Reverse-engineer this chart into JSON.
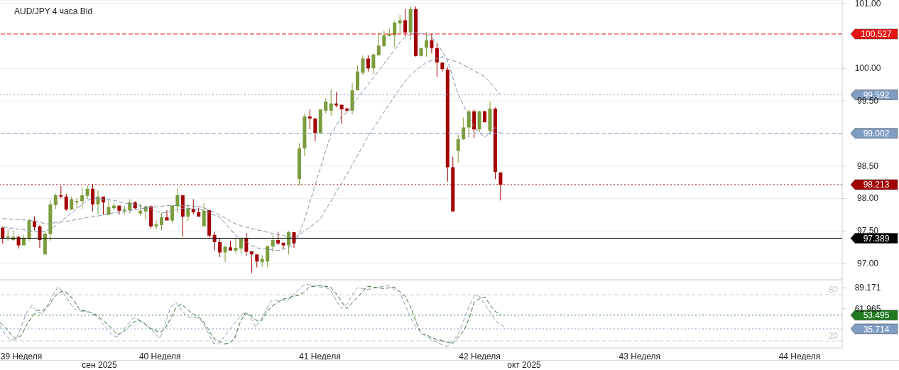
{
  "chart_data": [
    {
      "type": "candlestick",
      "title": "AUD/JPY  4 часа Bid",
      "categories": [
        null,
        null,
        null,
        null,
        null,
        null,
        null,
        null,
        null,
        null,
        null,
        null,
        null,
        null,
        null,
        null,
        null,
        null,
        null,
        null,
        null,
        null,
        null,
        null,
        null,
        null,
        null,
        null,
        null,
        null,
        null,
        null,
        null,
        null,
        null,
        null,
        null,
        null,
        null,
        null,
        null,
        null,
        null,
        null,
        null,
        null,
        null,
        null,
        null,
        null,
        null,
        null,
        null,
        null,
        null,
        null,
        null,
        null,
        null,
        null,
        null,
        null,
        null,
        null,
        null,
        null,
        null,
        null,
        null,
        null,
        null,
        null,
        null,
        null,
        null,
        null,
        null,
        null,
        null,
        null,
        null,
        null,
        null,
        null,
        null,
        null,
        null,
        null,
        null,
        null,
        null,
        null,
        null,
        null,
        null,
        null,
        null,
        null,
        null,
        null,
        null,
        null,
        null,
        null,
        null,
        null,
        null,
        null,
        null,
        null,
        null,
        null,
        null,
        null,
        null,
        null,
        null,
        null,
        null,
        null,
        null,
        null,
        null,
        null,
        null,
        null,
        null,
        null,
        null,
        null,
        null,
        null,
        null,
        null,
        null,
        null,
        null,
        null,
        null,
        null,
        null,
        null,
        null,
        null,
        null,
        null,
        null,
        null,
        null,
        null,
        null,
        null,
        null,
        null,
        null,
        null,
        null,
        null,
        null
      ],
      "tick_labels": "y",
      "ylim": [
        96.75,
        101.05
      ],
      "yticks": [
        {
          "value": 97,
          "label": "97.00"
        },
        {
          "value": 97.5,
          "label": "97.50"
        },
        {
          "value": 98,
          "label": "98.00"
        },
        {
          "value": 98.5,
          "label": "98.50"
        },
        {
          "value": 99.5,
          "label": "99.50"
        },
        {
          "value": 100,
          "label": "100.00"
        },
        {
          "value": 101,
          "label": "101.00"
        }
      ],
      "grid": "y",
      "series": [
        {
          "ohlc": [
            [
              97.55,
              97.57,
              97.31,
              97.39
            ],
            [
              97.4,
              97.53,
              97.35,
              97.42
            ],
            [
              97.36,
              97.51,
              97.35,
              97.41
            ],
            [
              97.41,
              97.42,
              97.23,
              97.28
            ],
            [
              97.28,
              97.44,
              97.28,
              97.39
            ],
            [
              97.38,
              97.69,
              97.35,
              97.66
            ],
            [
              97.65,
              97.72,
              97.51,
              97.56
            ],
            [
              97.57,
              97.59,
              97.24,
              97.36
            ],
            [
              97.14,
              97.5,
              97.14,
              97.46
            ],
            [
              97.45,
              97.97,
              97.35,
              97.91
            ],
            [
              97.9,
              98.08,
              97.84,
              98.05
            ],
            [
              98.05,
              98.19,
              98,
              98.03
            ],
            [
              98.03,
              98.07,
              97.81,
              97.83
            ],
            [
              97.83,
              98.03,
              97.82,
              97.99
            ],
            [
              97.94,
              98.01,
              97.85,
              97.96
            ],
            [
              97.96,
              98.16,
              97.84,
              98.05
            ],
            [
              98.04,
              98.2,
              97.99,
              98.15
            ],
            [
              98.15,
              98.22,
              97.8,
              97.91
            ],
            [
              97.91,
              98.13,
              97.75,
              98.03
            ],
            [
              98.03,
              98.03,
              97.75,
              97.94
            ],
            [
              97.75,
              97.97,
              97.74,
              97.87
            ],
            [
              97.85,
              97.93,
              97.82,
              97.89
            ],
            [
              97.89,
              97.89,
              97.75,
              97.81
            ],
            [
              97.81,
              97.88,
              97.75,
              97.83
            ],
            [
              97.82,
              97.99,
              97.77,
              97.94
            ],
            [
              97.94,
              97.96,
              97.83,
              97.85
            ],
            [
              97.77,
              97.92,
              97.73,
              97.81
            ],
            [
              97.8,
              97.89,
              97.66,
              97.88
            ],
            [
              97.88,
              97.89,
              97.54,
              97.57
            ],
            [
              97.57,
              97.66,
              97.53,
              97.6
            ],
            [
              97.59,
              97.78,
              97.51,
              97.71
            ],
            [
              97.71,
              97.82,
              97.66,
              97.66
            ],
            [
              97.66,
              97.89,
              97.62,
              97.89
            ],
            [
              97.88,
              98.15,
              97.78,
              98.05
            ],
            [
              98.05,
              98.05,
              97.41,
              97.72
            ],
            [
              97.72,
              97.91,
              97.65,
              97.85
            ],
            [
              97.84,
              97.99,
              97.76,
              97.79
            ],
            [
              97.79,
              97.86,
              97.72,
              97.72
            ],
            [
              97.57,
              97.93,
              97.57,
              97.81
            ],
            [
              97.82,
              97.82,
              97.4,
              97.43
            ],
            [
              97.44,
              97.49,
              97.2,
              97.33
            ],
            [
              97.33,
              97.39,
              97.1,
              97.17
            ],
            [
              97.17,
              97.27,
              97.02,
              97.26
            ],
            [
              97.25,
              97.35,
              97.2,
              97.2
            ],
            [
              97.2,
              97.39,
              97.15,
              97.24
            ],
            [
              97.23,
              97.4,
              97.15,
              97.39
            ],
            [
              97.39,
              97.47,
              97.12,
              97.18
            ],
            [
              97.19,
              97.19,
              96.85,
              97.14
            ],
            [
              97.14,
              97.14,
              96.94,
              97.03
            ],
            [
              97.02,
              97.13,
              96.95,
              97.07
            ],
            [
              97.03,
              97.27,
              96.95,
              97.27
            ],
            [
              97.26,
              97.44,
              97.18,
              97.36
            ],
            [
              97.36,
              97.48,
              97.28,
              97.31
            ],
            [
              97.32,
              97.32,
              97.22,
              97.28
            ],
            [
              97.28,
              97.5,
              97.14,
              97.48
            ],
            [
              97.48,
              97.48,
              97.24,
              97.31
            ],
            [
              98.3,
              98.85,
              98.2,
              98.77
            ],
            [
              98.77,
              99.31,
              98.65,
              99.26
            ],
            [
              99.26,
              99.37,
              99.06,
              99.23
            ],
            [
              99.23,
              99.23,
              98.88,
              99
            ],
            [
              99,
              99.37,
              98.99,
              99.37
            ],
            [
              99.35,
              99.54,
              99.31,
              99.49
            ],
            [
              99.35,
              99.68,
              99.27,
              99.46
            ],
            [
              99.46,
              99.64,
              99.4,
              99.43
            ],
            [
              99.44,
              99.44,
              99.15,
              99.37
            ],
            [
              99.38,
              99.4,
              99.33,
              99.35
            ],
            [
              99.35,
              99.77,
              99.29,
              99.66
            ],
            [
              99.66,
              100.04,
              99.66,
              99.95
            ],
            [
              99.93,
              100.2,
              99.89,
              100.15
            ],
            [
              100.15,
              100.2,
              99.95,
              100
            ],
            [
              100,
              100.24,
              99.91,
              100.21
            ],
            [
              100.2,
              100.55,
              100.2,
              100.35
            ],
            [
              100.34,
              100.58,
              100.33,
              100.51
            ],
            [
              100.5,
              100.61,
              100.49,
              100.53
            ],
            [
              100.51,
              100.73,
              100.33,
              100.7
            ],
            [
              100.69,
              100.82,
              100.53,
              100.74
            ],
            [
              100.74,
              100.91,
              100.49,
              100.55
            ],
            [
              100.55,
              100.95,
              100.44,
              100.91
            ],
            [
              100.91,
              100.95,
              100.18,
              100.19
            ],
            [
              100.19,
              100.32,
              100.18,
              100.31
            ],
            [
              100.32,
              100.55,
              100.18,
              100.43
            ],
            [
              100.43,
              100.53,
              100.23,
              100.31
            ],
            [
              100.31,
              100.38,
              99.87,
              100.09
            ],
            [
              100.09,
              100.09,
              99.95,
              99.99
            ],
            [
              99.98,
              100.02,
              98.26,
              98.48
            ],
            [
              98.48,
              98.64,
              97.8,
              97.8
            ],
            [
              98.73,
              98.98,
              98.55,
              98.91
            ],
            [
              98.91,
              99.24,
              98.9,
              99.09
            ],
            [
              99.09,
              99.37,
              98.93,
              99.34
            ],
            [
              99.34,
              99.37,
              98.93,
              99.06
            ],
            [
              99.06,
              99.35,
              99.02,
              99.34
            ],
            [
              99.34,
              99.35,
              99.17,
              99.17
            ],
            [
              99.04,
              99.49,
              98.98,
              99.38
            ],
            [
              99.38,
              99.4,
              98.3,
              98.41
            ],
            [
              98.4,
              98.4,
              97.97,
              98.21
            ],
            null,
            null,
            null,
            null,
            null,
            null,
            null,
            null,
            null,
            null,
            null,
            null,
            null,
            null,
            null,
            null,
            null,
            null,
            null,
            null,
            null,
            null,
            null,
            null,
            null,
            null,
            null,
            null,
            null,
            null,
            null,
            null,
            null,
            null,
            null,
            null,
            null,
            null,
            null,
            null,
            null,
            null,
            null,
            null,
            null,
            null,
            null,
            null,
            null,
            null,
            null,
            null,
            null,
            null,
            null,
            null,
            null,
            null,
            null,
            null,
            null,
            null,
            null,
            null
          ],
          "colors": [
            "#a30000",
            "#7b9c3c",
            "#7b9c3c",
            "#a30000",
            "#7b9c3c",
            "#7b9c3c",
            "#a30000",
            "#a30000",
            "#7b9c3c",
            "#7b9c3c",
            "#7b9c3c",
            "#a30000",
            "#a30000",
            "#7b9c3c",
            "#7b9c3c",
            "#7b9c3c",
            "#7b9c3c",
            "#a30000",
            "#7b9c3c",
            "#a30000",
            "#7b9c3c",
            "#7b9c3c",
            "#a30000",
            "#7b9c3c",
            "#7b9c3c",
            "#a30000",
            "#7b9c3c",
            "#7b9c3c",
            "#a30000",
            "#7b9c3c",
            "#7b9c3c",
            "#a30000",
            "#7b9c3c",
            "#7b9c3c",
            "#a30000",
            "#7b9c3c",
            "#a30000",
            "#a30000",
            "#7b9c3c",
            "#a30000",
            "#a30000",
            "#a30000",
            "#7b9c3c",
            "#a30000",
            "#7b9c3c",
            "#7b9c3c",
            "#a30000",
            "#a30000",
            "#a30000",
            "#7b9c3c",
            "#7b9c3c",
            "#7b9c3c",
            "#a30000",
            "#a30000",
            "#7b9c3c",
            "#a30000",
            "#7b9c3c",
            "#7b9c3c",
            "#a30000",
            "#a30000",
            "#7b9c3c",
            "#7b9c3c",
            "#7b9c3c",
            "#a30000",
            "#a30000",
            "#a30000",
            "#7b9c3c",
            "#7b9c3c",
            "#7b9c3c",
            "#a30000",
            "#7b9c3c",
            "#7b9c3c",
            "#7b9c3c",
            "#7b9c3c",
            "#7b9c3c",
            "#7b9c3c",
            "#a30000",
            "#7b9c3c",
            "#a30000",
            "#7b9c3c",
            "#7b9c3c",
            "#a30000",
            "#a30000",
            "#a30000",
            "#a30000",
            "#a30000",
            "#7b9c3c",
            "#7b9c3c",
            "#7b9c3c",
            "#a30000",
            "#7b9c3c",
            "#a30000",
            "#7b9c3c",
            "#a30000",
            "#a30000",
            null,
            null,
            null,
            null,
            null,
            null,
            null,
            null,
            null,
            null,
            null,
            null,
            null,
            null,
            null,
            null,
            null,
            null,
            null,
            null,
            null,
            null,
            null,
            null,
            null,
            null,
            null,
            null,
            null,
            null,
            null,
            null,
            null,
            null,
            null,
            null,
            null,
            null,
            null,
            null,
            null,
            null,
            null,
            null,
            null,
            null,
            null,
            null,
            null,
            null,
            null,
            null,
            null,
            null,
            null,
            null,
            null,
            null,
            null,
            null,
            null,
            null,
            null,
            null
          ]
        },
        {
          "type": "line",
          "color": "#7d90a8",
          "line_style": "dashed",
          "values": [
            97.69,
            97.69,
            97.68,
            97.68,
            97.67,
            97.66,
            97.66,
            97.64,
            97.61,
            97.61,
            97.63,
            97.64,
            97.65,
            97.66,
            97.68,
            97.69,
            97.71,
            97.72,
            97.73,
            97.75,
            97.76,
            97.78,
            97.79,
            97.8,
            97.81,
            97.83,
            97.84,
            97.85,
            97.86,
            97.87,
            97.88,
            97.89,
            97.89,
            97.89,
            97.89,
            97.89,
            97.88,
            97.88,
            97.86,
            97.82,
            97.79,
            97.74,
            97.7,
            97.65,
            97.61,
            97.58,
            97.56,
            97.54,
            97.52,
            97.5,
            97.48,
            97.46,
            97.44,
            97.43,
            97.41,
            97.4,
            97.44,
            97.5,
            97.56,
            97.62,
            97.69,
            97.83,
            97.96,
            98.1,
            98.24,
            98.37,
            98.52,
            98.66,
            98.81,
            98.96,
            99.08,
            99.2,
            99.33,
            99.45,
            99.57,
            99.69,
            99.8,
            99.9,
            99.97,
            100.03,
            100.09,
            100.12,
            100.15,
            100.18,
            100.14,
            100.12,
            100.09,
            100.05,
            100.01,
            99.96,
            99.92,
            99.87,
            99.79,
            99.69,
            99.59,
            null,
            null,
            null,
            null,
            null,
            null,
            null,
            null,
            null,
            null,
            null,
            null,
            null,
            null,
            null,
            null,
            null,
            null,
            null,
            null,
            null,
            null,
            null,
            null,
            null,
            null,
            null,
            null,
            null,
            null,
            null,
            null,
            null,
            null,
            null,
            null,
            null,
            null,
            null,
            null,
            null,
            null,
            null,
            null,
            null,
            null,
            null,
            null,
            null,
            null,
            null,
            null,
            null,
            null,
            null,
            null,
            null,
            null,
            null,
            null,
            null,
            null,
            null,
            null
          ]
        },
        {
          "type": "line",
          "color": "#7d90a8",
          "line_style": "dashed",
          "values": [
            97.56,
            97.55,
            97.54,
            97.53,
            97.52,
            97.5,
            97.49,
            97.48,
            97.5,
            97.53,
            97.58,
            97.65,
            97.71,
            97.78,
            97.84,
            97.91,
            97.97,
            98,
            98,
            97.99,
            97.99,
            97.97,
            97.95,
            97.93,
            97.92,
            97.91,
            97.89,
            97.86,
            97.83,
            97.8,
            97.78,
            97.78,
            97.81,
            97.83,
            97.85,
            97.85,
            97.84,
            97.83,
            97.82,
            97.78,
            97.74,
            97.71,
            97.62,
            97.53,
            97.43,
            97.38,
            97.33,
            97.28,
            97.24,
            97.23,
            97.22,
            97.21,
            97.2,
            97.22,
            97.25,
            97.28,
            97.46,
            97.68,
            97.94,
            98.21,
            98.47,
            98.73,
            98.99,
            99.12,
            99.27,
            99.32,
            99.42,
            99.54,
            99.65,
            99.75,
            99.86,
            99.96,
            100.07,
            100.18,
            100.28,
            100.4,
            100.48,
            100.53,
            100.55,
            100.54,
            100.52,
            100.48,
            100.38,
            100.26,
            100.12,
            99.85,
            99.61,
            99.43,
            99.27,
            99.1,
            99.01,
            98.94,
            99.01,
            99.09,
            99,
            null,
            null,
            null,
            null,
            null,
            null,
            null,
            null,
            null,
            null,
            null,
            null,
            null,
            null,
            null,
            null,
            null,
            null,
            null,
            null,
            null,
            null,
            null,
            null,
            null,
            null,
            null,
            null,
            null,
            null,
            null,
            null,
            null,
            null,
            null,
            null,
            null,
            null,
            null,
            null,
            null,
            null,
            null,
            null,
            null,
            null,
            null,
            null,
            null,
            null,
            null,
            null,
            null,
            null,
            null,
            null,
            null,
            null,
            null,
            null,
            null,
            null,
            null,
            null
          ]
        }
      ],
      "ref_lines": [
        {
          "axis": "y",
          "value": 100.527,
          "label": "100.527",
          "color": "#e81414",
          "line_style": "dashed"
        },
        {
          "axis": "y",
          "value": 99.592,
          "label": "99.592",
          "color": "#7f9cc2",
          "line_style": "dotted"
        },
        {
          "axis": "y",
          "value": 99.002,
          "label": "99.002",
          "color": "#7f9cc2",
          "line_style": "dashed"
        },
        {
          "axis": "y",
          "value": 98.213,
          "label": "98.213",
          "color": "#a30000",
          "line_style": "dotted"
        },
        {
          "axis": "y",
          "value": 97.389,
          "label": "97.389",
          "color": "#000000",
          "line_style": "solid"
        }
      ]
    },
    {
      "type": "line",
      "categories": [
        null,
        null,
        null,
        null,
        "39 Неделя",
        null,
        null,
        null,
        null,
        null,
        null,
        null,
        null,
        null,
        null,
        null,
        null,
        null,
        null,
        null,
        null,
        null,
        null,
        null,
        null,
        null,
        null,
        null,
        null,
        null,
        "40 Неделя",
        null,
        null,
        null,
        null,
        null,
        null,
        null,
        null,
        null,
        null,
        null,
        null,
        null,
        null,
        null,
        null,
        null,
        null,
        null,
        null,
        null,
        null,
        null,
        null,
        null,
        null,
        null,
        null,
        null,
        "41 Неделя",
        null,
        null,
        null,
        null,
        null,
        null,
        null,
        null,
        null,
        null,
        null,
        null,
        null,
        null,
        null,
        null,
        null,
        null,
        null,
        null,
        null,
        null,
        null,
        null,
        null,
        null,
        null,
        null,
        null,
        "42 Неделя",
        null,
        null,
        null,
        null,
        null,
        null,
        null,
        null,
        null,
        null,
        null,
        null,
        null,
        null,
        null,
        null,
        null,
        null,
        null,
        null,
        null,
        null,
        null,
        null,
        null,
        null,
        null,
        null,
        null,
        "43 Неделя",
        null,
        null,
        null,
        null,
        null,
        null,
        null,
        null,
        null,
        null,
        null,
        null,
        null,
        null,
        null,
        null,
        null,
        null,
        null,
        null,
        null,
        null,
        null,
        null,
        null,
        null,
        null,
        null,
        null,
        "44 Неделя",
        null,
        null,
        null,
        null,
        null,
        null,
        null,
        null
      ],
      "ylim": [
        10.8,
        98.5
      ],
      "yticks": [
        89.171,
        61.965
      ],
      "series": [
        {
          "color": "#2e6b2e",
          "line_style": "dashed",
          "values": [
            44,
            37,
            29,
            23,
            27,
            41,
            51,
            60,
            59,
            65,
            75,
            83,
            85,
            80,
            71,
            60,
            59,
            57,
            54,
            48,
            43,
            36,
            28,
            31,
            37,
            44,
            47,
            43,
            37,
            34,
            31,
            36,
            49,
            63,
            68,
            62,
            56,
            52,
            47,
            36,
            24,
            20,
            16,
            17,
            23,
            43,
            56,
            53,
            47,
            46,
            57,
            65,
            70,
            74,
            76,
            78,
            79,
            83,
            90,
            91,
            92,
            91,
            90,
            82,
            72,
            62,
            69,
            76,
            84,
            91,
            90,
            89,
            88,
            89,
            90,
            84,
            78,
            65,
            46,
            29,
            28,
            24,
            22,
            20,
            18,
            17,
            25,
            33,
            49,
            71,
            75,
            77,
            66,
            58,
            53,
            null,
            null,
            null,
            null,
            null,
            null,
            null,
            null,
            null,
            null,
            null,
            null,
            null,
            null,
            null,
            null,
            null,
            null,
            null,
            null,
            null,
            null,
            null,
            null,
            null,
            null,
            null,
            null,
            null,
            null,
            null,
            null,
            null,
            null,
            null,
            null,
            null,
            null,
            null,
            null,
            null,
            null,
            null,
            null,
            null,
            null,
            null,
            null,
            null,
            null,
            null,
            null,
            null,
            null,
            null,
            null,
            null,
            null,
            null,
            null,
            null,
            null,
            null,
            null
          ]
        },
        {
          "color": "#8a9bb0",
          "line_style": "dashed",
          "values": [
            40,
            28,
            21,
            22,
            39,
            57,
            66,
            58,
            55,
            68,
            81,
            91,
            81,
            71,
            61,
            59,
            58,
            57,
            52,
            45,
            36,
            28,
            25,
            33,
            42,
            50,
            48,
            44,
            38,
            30,
            23,
            42,
            64,
            70,
            61,
            52,
            50,
            50,
            45,
            31,
            17,
            16,
            25,
            34,
            43,
            51,
            58,
            51,
            38,
            49,
            61,
            73,
            73,
            73,
            73,
            80,
            87,
            93,
            93,
            92,
            90,
            90,
            86,
            74,
            62,
            67,
            79,
            89,
            88,
            87,
            88,
            90,
            91,
            92,
            87,
            84,
            67,
            51,
            38,
            31,
            25,
            22,
            18,
            15,
            13,
            21,
            29,
            47,
            65,
            79,
            78,
            67,
            57,
            46,
            41,
            36,
            null,
            null,
            null,
            null,
            null,
            null,
            null,
            null,
            null,
            null,
            null,
            null,
            null,
            null,
            null,
            null,
            null,
            null,
            null,
            null,
            null,
            null,
            null,
            null,
            null,
            null,
            null,
            null,
            null,
            null,
            null,
            null,
            null,
            null,
            null,
            null,
            null,
            null,
            null,
            null,
            null,
            null,
            null,
            null,
            null,
            null,
            null,
            null,
            null,
            null,
            null,
            null,
            null,
            null,
            null,
            null,
            null,
            null,
            null,
            null,
            null,
            null,
            null
          ]
        }
      ],
      "ref_lines": [
        {
          "axis": "y",
          "value": 80,
          "label": "80",
          "line_style": "dashed"
        },
        {
          "axis": "y",
          "value": 20,
          "label": "20",
          "line_style": "dashed"
        },
        {
          "axis": "y",
          "value": 53.495,
          "label": "53.495",
          "color": "#1f7a1f",
          "line_style": "dotted"
        },
        {
          "axis": "y",
          "value": 35.714,
          "label": "35.714",
          "color": "#7f9cc2",
          "line_style": "dotted"
        }
      ],
      "annotations": [
        "сен 2025",
        "окт 2025"
      ]
    }
  ]
}
